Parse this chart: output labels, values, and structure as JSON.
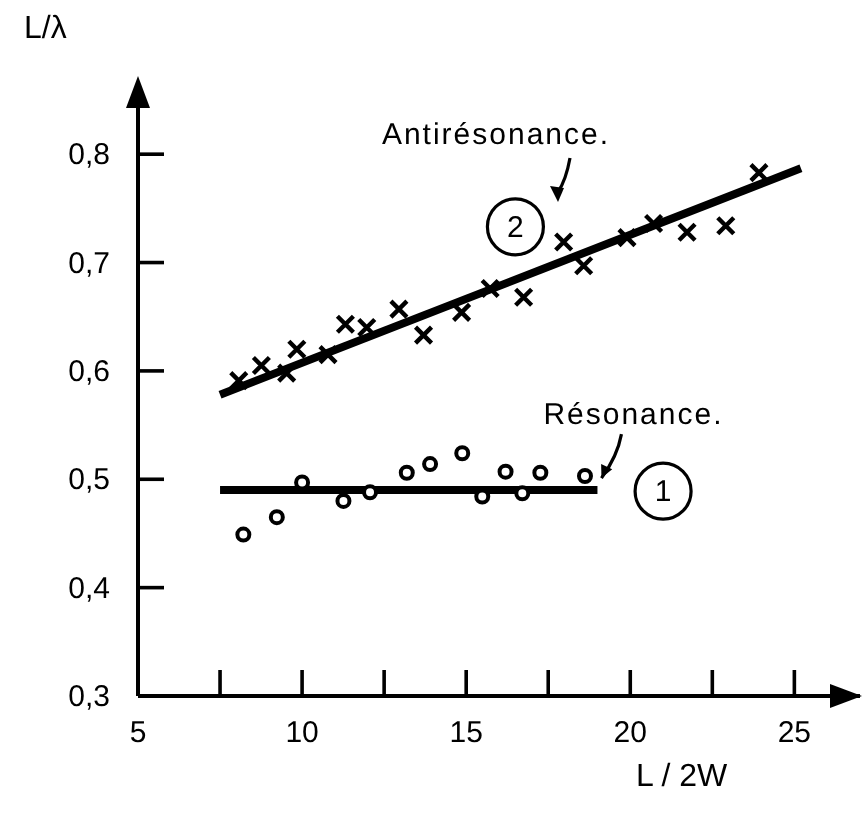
{
  "chart_data": {
    "type": "scatter",
    "xlabel": "L / 2W",
    "ylabel": "L/λ",
    "xlim": [
      5,
      27
    ],
    "ylim": [
      0.3,
      0.85
    ],
    "xticks": [
      5,
      {
        "value": 7.5,
        "label": null
      },
      10,
      {
        "value": 12.5,
        "label": null
      },
      15,
      {
        "value": 17.5,
        "label": null
      },
      20,
      {
        "value": 22.5,
        "label": null
      },
      25
    ],
    "yticks": [
      {
        "value": 0.3,
        "label": "0,3"
      },
      {
        "value": 0.4,
        "label": "0,4"
      },
      {
        "value": 0.5,
        "label": "0,5"
      },
      {
        "value": 0.6,
        "label": "0,6"
      },
      {
        "value": 0.7,
        "label": "0,7"
      },
      {
        "value": 0.8,
        "label": "0,8"
      }
    ],
    "series": [
      {
        "marker": "cross",
        "color": "#000000",
        "x": [
          8.07,
          8.76,
          9.53,
          9.84,
          10.79,
          11.32,
          11.97,
          12.95,
          13.7,
          14.86,
          15.73,
          16.75,
          17.97,
          18.58,
          19.9,
          20.71,
          21.73,
          22.91,
          23.92
        ],
        "values": [
          0.591,
          0.605,
          0.598,
          0.62,
          0.615,
          0.643,
          0.64,
          0.657,
          0.633,
          0.654,
          0.676,
          0.668,
          0.719,
          0.697,
          0.723,
          0.736,
          0.728,
          0.734,
          0.783
        ]
      },
      {
        "type": "line",
        "marker": "none",
        "color": "#000000",
        "x": [
          7.5,
          25.2
        ],
        "values": [
          0.578,
          0.787
        ]
      },
      {
        "marker": "circle",
        "color": "#000000",
        "x": [
          8.21,
          9.23,
          10.0,
          11.26,
          12.07,
          13.19,
          13.9,
          14.88,
          15.49,
          16.2,
          16.71,
          17.26,
          18.62
        ],
        "values": [
          0.449,
          0.465,
          0.497,
          0.48,
          0.488,
          0.506,
          0.514,
          0.524,
          0.484,
          0.507,
          0.487,
          0.506,
          0.503
        ]
      },
      {
        "type": "line",
        "marker": "none",
        "color": "#000000",
        "x": [
          7.5,
          19.0
        ],
        "values": [
          0.49,
          0.49
        ]
      }
    ],
    "annotations": [
      "Antirésonance.",
      {
        "text": "2",
        "x": 16.5,
        "y": 0.733
      },
      {
        "text": "Résonance.",
        "x": 19.0,
        "y": 0.49
      },
      {
        "text": "1",
        "x": 21.0,
        "y": 0.489
      }
    ]
  }
}
